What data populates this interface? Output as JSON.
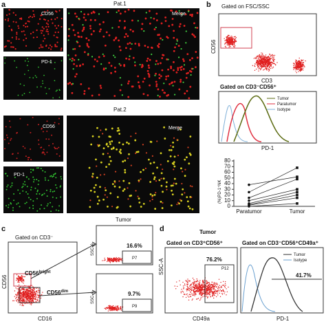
{
  "panel_a": {
    "label": "a",
    "pat1": {
      "title": "Pat.1",
      "cd56": "CD56",
      "pd1": "PD-1",
      "merge": "Merge"
    },
    "pat2": {
      "title": "Pat.2",
      "cd56": "CD56",
      "pd1": "PD-1",
      "merge": "Merge"
    }
  },
  "panel_b": {
    "label": "b",
    "gate1": "Gated on FSC/SSC",
    "y_axis": "CD56",
    "x_axis": "CD3",
    "gate2": "Gated on CD3⁻CD56⁺",
    "legend": [
      "Tumor",
      "Paratumor",
      "Isotype"
    ],
    "hist_x_axis": "PD-1",
    "paired_chart": {
      "ylabel": "(%)PD-1⁺NK",
      "categories": [
        "Paratumor",
        "Tumor"
      ],
      "ylim": [
        0,
        80
      ],
      "yticks": [
        0,
        10,
        20,
        30,
        40,
        50,
        60,
        70,
        80
      ],
      "pairs": [
        [
          38,
          52
        ],
        [
          25,
          68
        ],
        [
          15,
          48
        ],
        [
          10,
          30
        ],
        [
          5,
          25
        ],
        [
          3,
          20
        ],
        [
          2,
          15
        ],
        [
          0,
          5
        ]
      ]
    }
  },
  "panel_c": {
    "label": "c",
    "gate": "Gated on CD3⁻",
    "y_axis": "CD56",
    "x_axis": "CD16",
    "bright": {
      "base": "CD56",
      "sup": "bright"
    },
    "dim": {
      "base": "CD56",
      "sup": "dim"
    },
    "tumor": "Tumor",
    "top": {
      "percent": "16.6%",
      "gate": "P7",
      "y_axis": "SSC-A"
    },
    "bottom": {
      "percent": "9.7%",
      "gate": "P9",
      "y_axis": "SSC-A"
    }
  },
  "panel_d": {
    "label": "d",
    "title": "Tumor",
    "gate1": "Gated on CD3⁺CD56⁺",
    "percent1": "76.2%",
    "gate_name": "P12",
    "y_axis": "SSC-A",
    "x_axis": "CD49a",
    "gate2": "Gated on CD3⁻CD56⁺CD49a⁺",
    "legend": [
      "Tumor",
      "Isotype"
    ],
    "percent2": "41.7%",
    "hist_x_axis": "PD-1"
  }
}
